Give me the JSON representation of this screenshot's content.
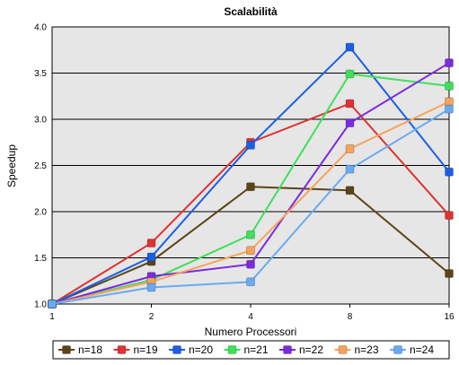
{
  "chart_data": {
    "type": "line",
    "title": "Scalabilità",
    "xlabel": "Numero Processori",
    "ylabel": "Speedup",
    "x": [
      "1",
      "2",
      "4",
      "8",
      "16"
    ],
    "ylim": [
      1.0,
      4.0
    ],
    "yticks": [
      "1.0",
      "1.5",
      "2.0",
      "2.5",
      "3.0",
      "3.5",
      "4.0"
    ],
    "grid": true,
    "legend_position": "bottom",
    "background": "#e6e6e6",
    "series": [
      {
        "name": "n=18",
        "color": "#5c4418",
        "values": [
          1.0,
          1.46,
          2.27,
          2.23,
          1.33
        ]
      },
      {
        "name": "n=19",
        "color": "#e03232",
        "values": [
          1.0,
          1.66,
          2.75,
          3.17,
          1.96
        ]
      },
      {
        "name": "n=20",
        "color": "#1a5fe6",
        "values": [
          1.0,
          1.51,
          2.72,
          3.78,
          2.43
        ]
      },
      {
        "name": "n=21",
        "color": "#3ee05a",
        "values": [
          1.0,
          1.26,
          1.75,
          3.49,
          3.36
        ]
      },
      {
        "name": "n=22",
        "color": "#7b2ae0",
        "values": [
          1.0,
          1.3,
          1.43,
          2.96,
          3.61
        ]
      },
      {
        "name": "n=23",
        "color": "#f7a35c",
        "values": [
          1.0,
          1.24,
          1.58,
          2.68,
          3.19
        ]
      },
      {
        "name": "n=24",
        "color": "#6aaaf4",
        "values": [
          1.0,
          1.18,
          1.24,
          2.46,
          3.11
        ]
      }
    ]
  }
}
